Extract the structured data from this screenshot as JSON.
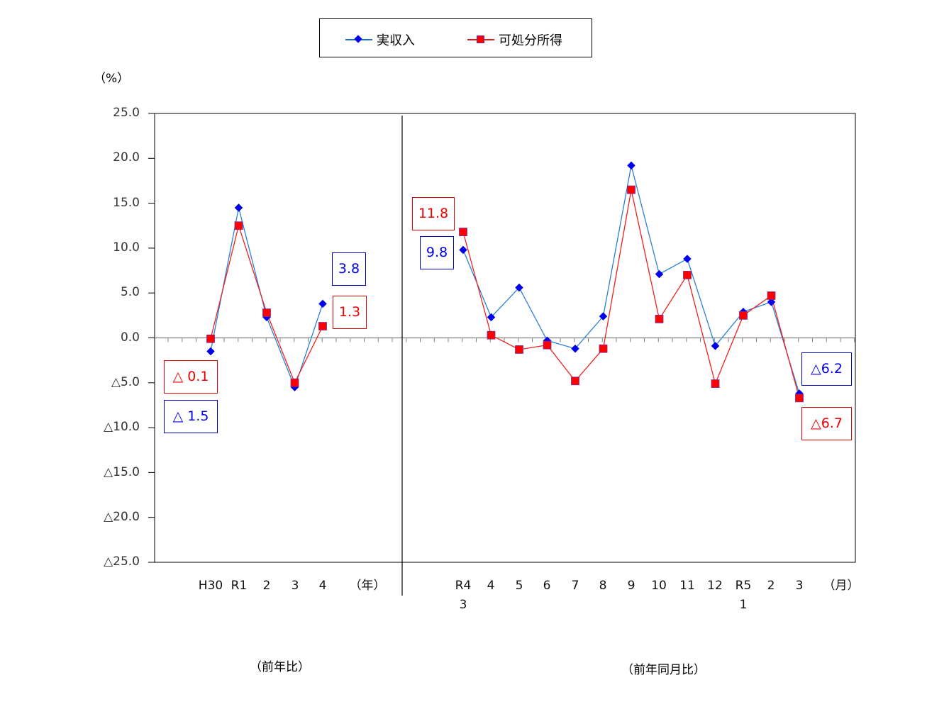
{
  "legend": {
    "items": [
      {
        "label": "実収入",
        "marker": "diamond",
        "color": "#0000ee",
        "line_color": "#1f6fd0"
      },
      {
        "label": "可処分所得",
        "marker": "square",
        "color": "#ff0000",
        "line_color": "#e31a1c"
      }
    ]
  },
  "yaxis": {
    "unit_label": "（%）",
    "ticks": [
      "25.0",
      "20.0",
      "15.0",
      "10.0",
      "5.0",
      "0.0",
      "△5.0",
      "△10.0",
      "△15.0",
      "△20.0",
      "△25.0"
    ]
  },
  "xaxis": {
    "annual_ticks": [
      "H30",
      "R1",
      "2",
      "3",
      "4"
    ],
    "annual_unit": "（年）",
    "monthly_ticks": [
      "R4\n3",
      "4",
      "5",
      "6",
      "7",
      "8",
      "9",
      "10",
      "11",
      "12",
      "R5\n1",
      "2",
      "3"
    ],
    "monthly_tick_line1": [
      "R4",
      "4",
      "5",
      "6",
      "7",
      "8",
      "9",
      "10",
      "11",
      "12",
      "R5",
      "2",
      "3"
    ],
    "monthly_tick_line2": [
      "3",
      "",
      "",
      "",
      "",
      "",
      "",
      "",
      "",
      "",
      "1",
      "",
      ""
    ],
    "monthly_unit": "（月）"
  },
  "captions": {
    "annual": "（前年比）",
    "monthly": "（前年同月比）"
  },
  "data_labels": {
    "annual_first_income": "△ 1.5",
    "annual_first_disposable": "△ 0.1",
    "annual_last_income": "3.8",
    "annual_last_disposable": "1.3",
    "monthly_first_income": "9.8",
    "monthly_first_disposable": "11.8",
    "monthly_last_income": "△6.2",
    "monthly_last_disposable": "△6.7"
  },
  "chart_data": [
    {
      "type": "line",
      "title": "前年比",
      "xlabel": "（年）",
      "ylabel": "（%）",
      "categories": [
        "H30",
        "R1",
        "2",
        "3",
        "4"
      ],
      "series": [
        {
          "name": "実収入",
          "values": [
            -1.5,
            14.5,
            2.3,
            -5.5,
            3.8
          ]
        },
        {
          "name": "可処分所得",
          "values": [
            -0.1,
            12.5,
            2.8,
            -5.0,
            1.3
          ]
        }
      ],
      "ylim": [
        -25,
        25
      ],
      "ytick_step": 5,
      "negative_prefix": "△",
      "grid": false,
      "legend_position": "top"
    },
    {
      "type": "line",
      "title": "前年同月比",
      "xlabel": "（月）",
      "ylabel": "（%）",
      "categories": [
        "R4.3",
        "4",
        "5",
        "6",
        "7",
        "8",
        "9",
        "10",
        "11",
        "12",
        "R5.1",
        "2",
        "3"
      ],
      "series": [
        {
          "name": "実収入",
          "values": [
            9.8,
            2.3,
            5.6,
            -0.3,
            -1.2,
            2.4,
            19.2,
            7.1,
            8.8,
            -0.9,
            2.9,
            4.0,
            -6.2
          ]
        },
        {
          "name": "可処分所得",
          "values": [
            11.8,
            0.3,
            -1.3,
            -0.8,
            -4.8,
            -1.2,
            16.5,
            2.1,
            7.0,
            -5.1,
            2.5,
            4.7,
            -6.7
          ]
        }
      ],
      "ylim": [
        -25,
        25
      ],
      "ytick_step": 5,
      "negative_prefix": "△",
      "grid": false,
      "legend_position": "top"
    }
  ]
}
